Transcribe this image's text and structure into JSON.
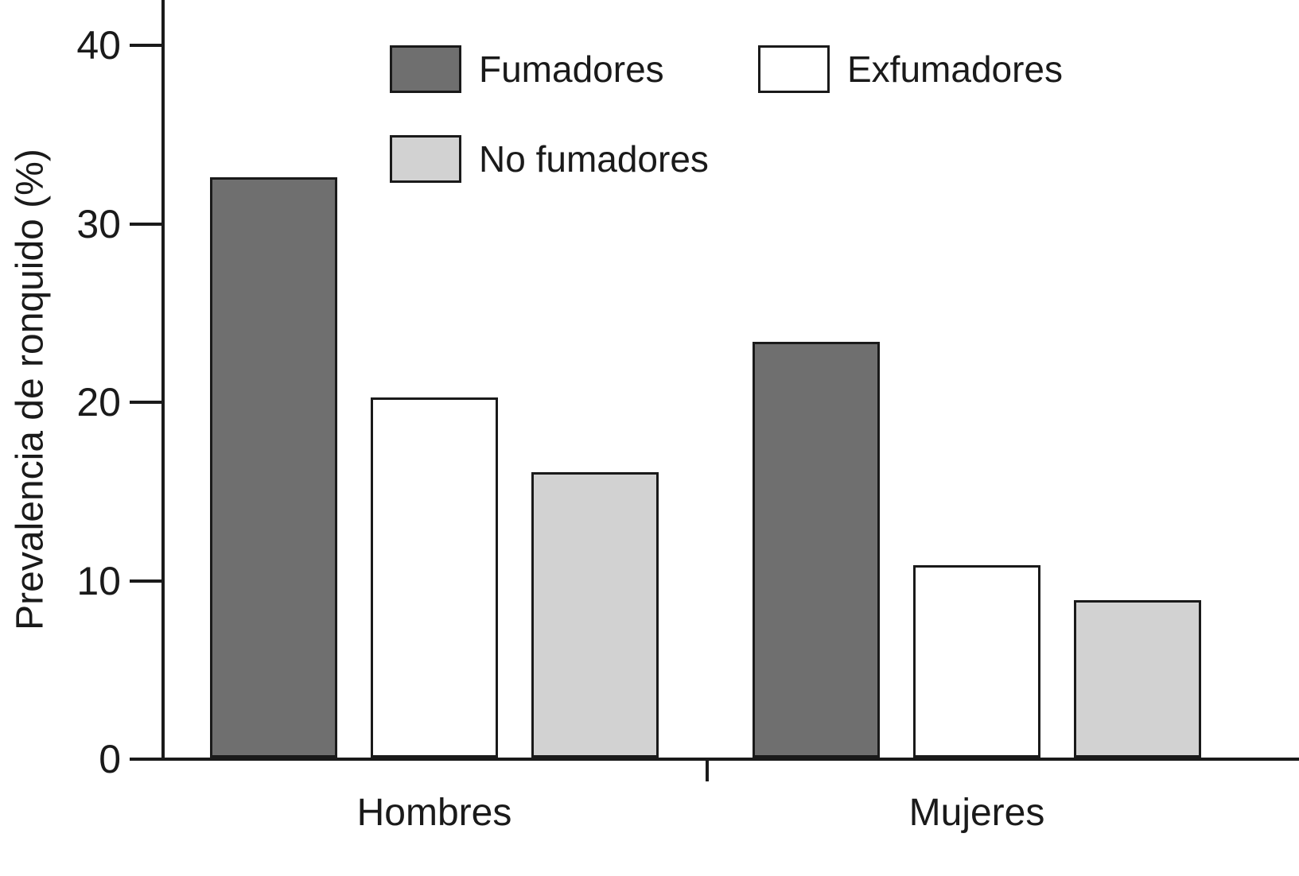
{
  "chart_data": {
    "type": "bar",
    "title": "",
    "xlabel": "",
    "ylabel": "Prevalencia de ronquido (%)",
    "categories": [
      "Hombres",
      "Mujeres"
    ],
    "series": [
      {
        "name": "Fumadores",
        "color": "#6f6f6f",
        "values": [
          32.5,
          23.3
        ]
      },
      {
        "name": "Exfumadores",
        "color": "#ffffff",
        "values": [
          20.2,
          10.8
        ]
      },
      {
        "name": "No fumadores",
        "color": "#d2d2d2",
        "values": [
          16.0,
          8.8
        ]
      }
    ],
    "y_ticks": [
      0,
      10,
      20,
      30,
      40
    ],
    "ylim": [
      0,
      42.5
    ],
    "grid": false,
    "legend_position": "top-inside"
  }
}
